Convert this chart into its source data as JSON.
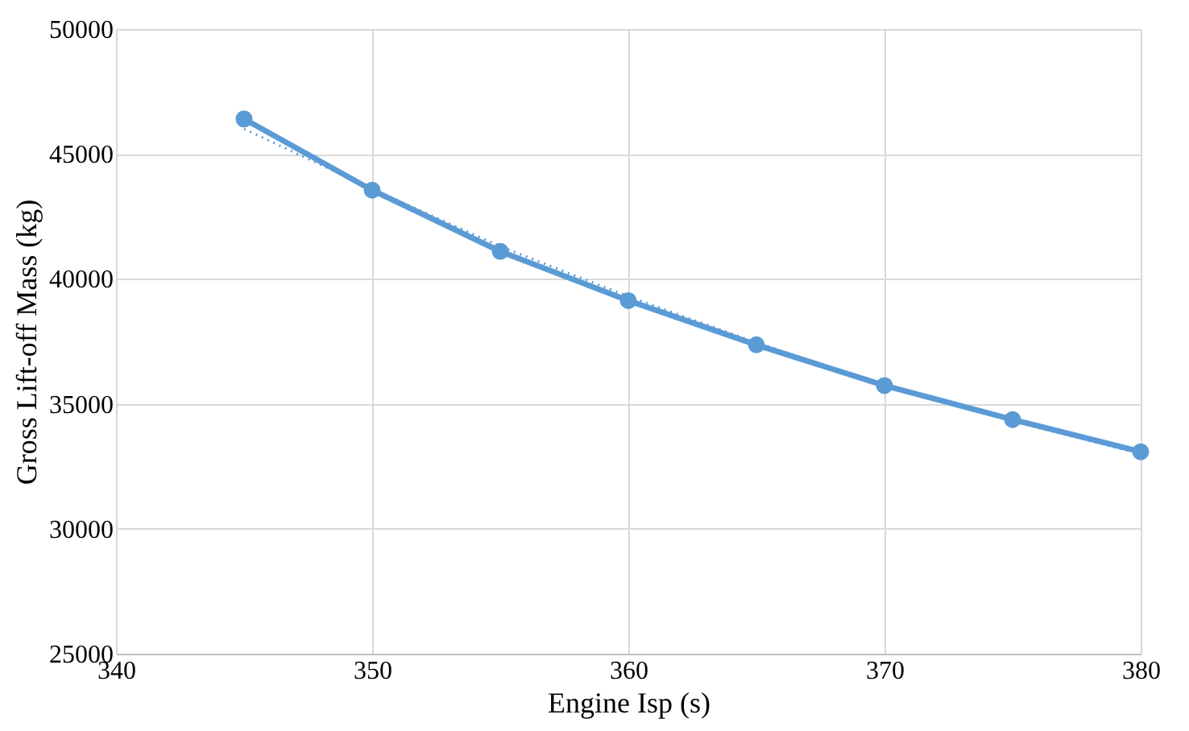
{
  "chart_data": {
    "type": "line",
    "xlabel": "Engine Isp (s)",
    "ylabel": "Gross Lift-off Mass (kg)",
    "xlim": [
      340,
      380
    ],
    "xticks": [
      340,
      350,
      360,
      370,
      380
    ],
    "ylim": [
      25000,
      50000
    ],
    "yticks": [
      25000,
      30000,
      35000,
      40000,
      45000,
      50000
    ],
    "grid": true,
    "series": [
      {
        "color": "#5b9bd5",
        "marker": "circle",
        "line_style": "solid",
        "x": [
          345,
          350,
          355,
          360,
          365,
          370,
          375,
          380
        ],
        "values": [
          46400,
          43550,
          41100,
          39130,
          37360,
          35730,
          34370,
          33080
        ]
      },
      {
        "type": "line",
        "color": "#5b9bd5",
        "marker": "none",
        "line_style": "dotted",
        "x": [
          345,
          350,
          355,
          360,
          365,
          370,
          375,
          380
        ],
        "values": [
          46000,
          43600,
          41300,
          39300,
          37450,
          35750,
          34300,
          33000
        ]
      }
    ]
  }
}
